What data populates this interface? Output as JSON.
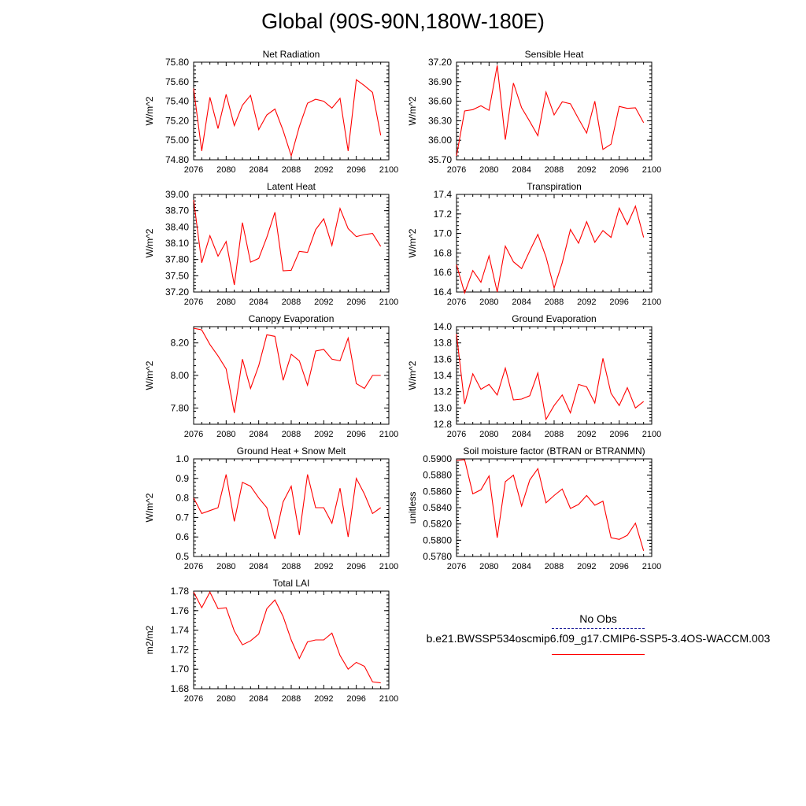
{
  "page_title": "Global (90S-90N,180W-180E)",
  "legend": {
    "obs_label": "No Obs",
    "model_label": "b.e21.BWSSP534oscmip6.f09_g17.CMIP6-SSP5-3.4OS-WACCM.003",
    "model_color": "#ff0000",
    "obs_color": "#1f1f9a"
  },
  "chart_data": [
    {
      "type": "line",
      "title": "Net Radiation",
      "ylabel": "W/m^2",
      "xlim": [
        2076,
        2100
      ],
      "ylim": [
        74.8,
        75.8
      ],
      "x_ticks": [
        "2076",
        "2080",
        "2084",
        "2088",
        "2092",
        "2096",
        "2100"
      ],
      "y_ticks": [
        "74.80",
        "75.00",
        "75.20",
        "75.40",
        "75.60",
        "75.80"
      ],
      "series": [
        {
          "color": "#ff0000",
          "x": [
            2076,
            2077,
            2078,
            2079,
            2080,
            2081,
            2082,
            2083,
            2084,
            2085,
            2086,
            2087,
            2088,
            2089,
            2090,
            2091,
            2092,
            2093,
            2094,
            2095,
            2096,
            2097,
            2098,
            2099
          ],
          "values": [
            75.53,
            74.89,
            75.44,
            75.12,
            75.47,
            75.15,
            75.36,
            75.46,
            75.11,
            75.26,
            75.32,
            75.1,
            74.84,
            75.14,
            75.38,
            75.42,
            75.4,
            75.33,
            75.43,
            74.89,
            75.62,
            75.56,
            75.49,
            75.05
          ]
        }
      ]
    },
    {
      "type": "line",
      "title": "Sensible Heat",
      "ylabel": "W/m^2",
      "xlim": [
        2076,
        2100
      ],
      "ylim": [
        35.7,
        37.2
      ],
      "x_ticks": [
        "2076",
        "2080",
        "2084",
        "2088",
        "2092",
        "2096",
        "2100"
      ],
      "y_ticks": [
        "35.70",
        "36.00",
        "36.30",
        "36.60",
        "36.90",
        "37.20"
      ],
      "series": [
        {
          "color": "#ff0000",
          "x": [
            2076,
            2077,
            2078,
            2079,
            2080,
            2081,
            2082,
            2083,
            2084,
            2085,
            2086,
            2087,
            2088,
            2089,
            2090,
            2091,
            2092,
            2093,
            2094,
            2095,
            2096,
            2097,
            2098,
            2099
          ],
          "values": [
            35.76,
            36.45,
            36.47,
            36.53,
            36.46,
            37.15,
            36.01,
            36.88,
            36.5,
            36.29,
            36.07,
            36.74,
            36.39,
            36.59,
            36.56,
            36.33,
            36.11,
            36.6,
            35.86,
            35.94,
            36.52,
            36.49,
            36.5,
            36.27
          ]
        }
      ]
    },
    {
      "type": "line",
      "title": "Latent Heat",
      "ylabel": "W/m^2",
      "xlim": [
        2076,
        2100
      ],
      "ylim": [
        37.2,
        39.0
      ],
      "x_ticks": [
        "2076",
        "2080",
        "2084",
        "2088",
        "2092",
        "2096",
        "2100"
      ],
      "y_ticks": [
        "37.20",
        "37.50",
        "37.80",
        "38.10",
        "38.40",
        "38.70",
        "39.00"
      ],
      "series": [
        {
          "color": "#ff0000",
          "x": [
            2076,
            2077,
            2078,
            2079,
            2080,
            2081,
            2082,
            2083,
            2084,
            2085,
            2086,
            2087,
            2088,
            2089,
            2090,
            2091,
            2092,
            2093,
            2094,
            2095,
            2096,
            2097,
            2098,
            2099
          ],
          "values": [
            38.9,
            37.74,
            38.24,
            37.86,
            38.13,
            37.33,
            38.48,
            37.75,
            37.82,
            38.21,
            38.67,
            37.59,
            37.6,
            37.95,
            37.93,
            38.35,
            38.55,
            38.06,
            38.74,
            38.37,
            38.22,
            38.26,
            38.28,
            38.04
          ]
        }
      ]
    },
    {
      "type": "line",
      "title": "Transpiration",
      "ylabel": "W/m^2",
      "xlim": [
        2076,
        2100
      ],
      "ylim": [
        16.4,
        17.4
      ],
      "x_ticks": [
        "2076",
        "2080",
        "2084",
        "2088",
        "2092",
        "2096",
        "2100"
      ],
      "y_ticks": [
        "16.4",
        "16.6",
        "16.8",
        "17.0",
        "17.2",
        "17.4"
      ],
      "series": [
        {
          "color": "#ff0000",
          "x": [
            2076,
            2077,
            2078,
            2079,
            2080,
            2081,
            2082,
            2083,
            2084,
            2085,
            2086,
            2087,
            2088,
            2089,
            2090,
            2091,
            2092,
            2093,
            2094,
            2095,
            2096,
            2097,
            2098,
            2099
          ],
          "values": [
            16.68,
            16.39,
            16.62,
            16.5,
            16.77,
            16.4,
            16.87,
            16.71,
            16.64,
            16.82,
            16.99,
            16.76,
            16.44,
            16.7,
            17.04,
            16.9,
            17.12,
            16.91,
            17.03,
            16.96,
            17.26,
            17.09,
            17.28,
            16.96
          ]
        }
      ]
    },
    {
      "type": "line",
      "title": "Canopy Evaporation",
      "ylabel": "W/m^2",
      "xlim": [
        2076,
        2100
      ],
      "ylim": [
        7.7,
        8.3
      ],
      "x_ticks": [
        "2076",
        "2080",
        "2084",
        "2088",
        "2092",
        "2096",
        "2100"
      ],
      "y_ticks": [
        "7.80",
        "8.00",
        "8.20"
      ],
      "y_tick_values": [
        7.8,
        8.0,
        8.2
      ],
      "series": [
        {
          "color": "#ff0000",
          "x": [
            2076,
            2077,
            2078,
            2079,
            2080,
            2081,
            2082,
            2083,
            2084,
            2085,
            2086,
            2087,
            2088,
            2089,
            2090,
            2091,
            2092,
            2093,
            2094,
            2095,
            2096,
            2097,
            2098,
            2099
          ],
          "values": [
            8.29,
            8.28,
            8.19,
            8.12,
            8.04,
            7.77,
            8.1,
            7.92,
            8.06,
            8.25,
            8.24,
            7.97,
            8.13,
            8.09,
            7.94,
            8.15,
            8.16,
            8.1,
            8.09,
            8.23,
            7.95,
            7.92,
            8.0,
            8.0
          ]
        }
      ]
    },
    {
      "type": "line",
      "title": "Ground Evaporation",
      "ylabel": "W/m^2",
      "xlim": [
        2076,
        2100
      ],
      "ylim": [
        12.8,
        14.0
      ],
      "x_ticks": [
        "2076",
        "2080",
        "2084",
        "2088",
        "2092",
        "2096",
        "2100"
      ],
      "y_ticks": [
        "12.8",
        "13.0",
        "13.2",
        "13.4",
        "13.6",
        "13.8",
        "14.0"
      ],
      "series": [
        {
          "color": "#ff0000",
          "x": [
            2076,
            2077,
            2078,
            2079,
            2080,
            2081,
            2082,
            2083,
            2084,
            2085,
            2086,
            2087,
            2088,
            2089,
            2090,
            2091,
            2092,
            2093,
            2094,
            2095,
            2096,
            2097,
            2098,
            2099
          ],
          "values": [
            13.91,
            13.05,
            13.42,
            13.23,
            13.29,
            13.16,
            13.49,
            13.1,
            13.11,
            13.15,
            13.43,
            12.86,
            13.03,
            13.16,
            12.94,
            13.29,
            13.26,
            13.06,
            13.61,
            13.18,
            13.03,
            13.25,
            13.0,
            13.08
          ]
        }
      ]
    },
    {
      "type": "line",
      "title": "Ground Heat + Snow Melt",
      "ylabel": "W/m^2",
      "xlim": [
        2076,
        2100
      ],
      "ylim": [
        0.5,
        1.0
      ],
      "x_ticks": [
        "2076",
        "2080",
        "2084",
        "2088",
        "2092",
        "2096",
        "2100"
      ],
      "y_ticks": [
        "0.5",
        "0.6",
        "0.7",
        "0.8",
        "0.9",
        "1.0"
      ],
      "series": [
        {
          "color": "#ff0000",
          "x": [
            2076,
            2077,
            2078,
            2079,
            2080,
            2081,
            2082,
            2083,
            2084,
            2085,
            2086,
            2087,
            2088,
            2089,
            2090,
            2091,
            2092,
            2093,
            2094,
            2095,
            2096,
            2097,
            2098,
            2099
          ],
          "values": [
            0.8,
            0.72,
            0.735,
            0.75,
            0.92,
            0.68,
            0.88,
            0.86,
            0.8,
            0.75,
            0.59,
            0.78,
            0.86,
            0.61,
            0.92,
            0.75,
            0.75,
            0.67,
            0.85,
            0.6,
            0.9,
            0.82,
            0.72,
            0.75
          ]
        }
      ]
    },
    {
      "type": "line",
      "title": "Soil moisture factor (BTRAN or BTRANMN)",
      "ylabel": "unitless",
      "xlim": [
        2076,
        2100
      ],
      "ylim": [
        0.578,
        0.59
      ],
      "x_ticks": [
        "2076",
        "2080",
        "2084",
        "2088",
        "2092",
        "2096",
        "2100"
      ],
      "y_ticks": [
        "0.5780",
        "0.5800",
        "0.5820",
        "0.5840",
        "0.5860",
        "0.5880",
        "0.5900"
      ],
      "series": [
        {
          "color": "#ff0000",
          "x": [
            2076,
            2077,
            2078,
            2079,
            2080,
            2081,
            2082,
            2083,
            2084,
            2085,
            2086,
            2087,
            2088,
            2089,
            2090,
            2091,
            2092,
            2093,
            2094,
            2095,
            2096,
            2097,
            2098,
            2099
          ],
          "values": [
            0.5898,
            0.5899,
            0.5857,
            0.5862,
            0.5879,
            0.5803,
            0.5872,
            0.588,
            0.5842,
            0.5874,
            0.5888,
            0.5846,
            0.5855,
            0.5863,
            0.5839,
            0.5844,
            0.5855,
            0.5843,
            0.5848,
            0.5803,
            0.5801,
            0.5806,
            0.5821,
            0.5787
          ]
        }
      ]
    },
    {
      "type": "line",
      "title": "Total LAI",
      "ylabel": "m2/m2",
      "xlim": [
        2076,
        2100
      ],
      "ylim": [
        1.68,
        1.78
      ],
      "x_ticks": [
        "2076",
        "2080",
        "2084",
        "2088",
        "2092",
        "2096",
        "2100"
      ],
      "y_ticks": [
        "1.68",
        "1.70",
        "1.72",
        "1.74",
        "1.76",
        "1.78"
      ],
      "series": [
        {
          "color": "#ff0000",
          "x": [
            2076,
            2077,
            2078,
            2079,
            2080,
            2081,
            2082,
            2083,
            2084,
            2085,
            2086,
            2087,
            2088,
            2089,
            2090,
            2091,
            2092,
            2093,
            2094,
            2095,
            2096,
            2097,
            2098,
            2099
          ],
          "values": [
            1.779,
            1.763,
            1.779,
            1.762,
            1.763,
            1.739,
            1.725,
            1.729,
            1.736,
            1.762,
            1.771,
            1.754,
            1.73,
            1.711,
            1.728,
            1.73,
            1.73,
            1.737,
            1.714,
            1.7,
            1.707,
            1.703,
            1.687,
            1.686
          ]
        }
      ]
    }
  ]
}
